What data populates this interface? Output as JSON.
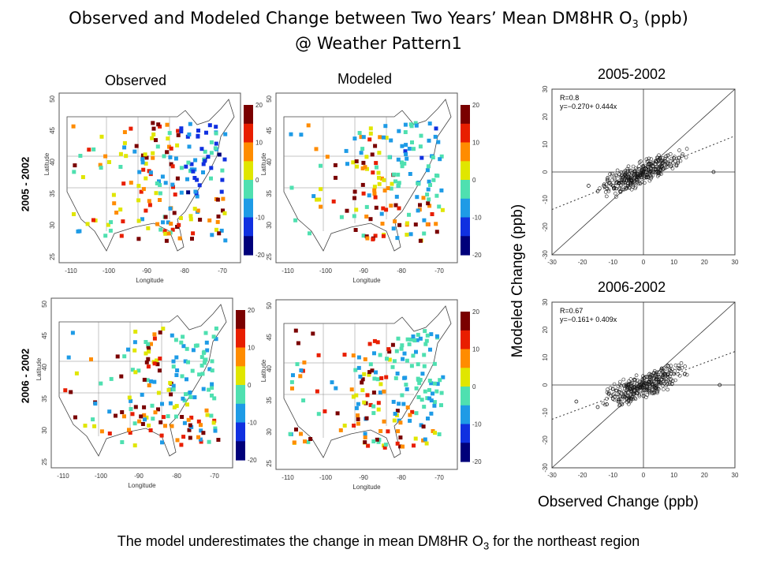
{
  "title": {
    "line1_main": "Observed and Modeled Change between Two Years’ Mean DM8HR O",
    "line1_sub": "3",
    "line1_end": " (ppb)",
    "line2": "@ Weather Pattern1"
  },
  "columns": {
    "observed": "Observed",
    "modeled": "Modeled"
  },
  "rows": {
    "row1": "2005 - 2002",
    "row2": "2006 - 2002"
  },
  "map_axes": {
    "xlabel": "Longitude",
    "ylabel": "Latitude",
    "xticks": [
      "-110",
      "-100",
      "-90",
      "-80",
      "-70"
    ],
    "yticks": [
      "25",
      "30",
      "35",
      "40",
      "45",
      "50"
    ]
  },
  "colorbar": {
    "ticks": [
      "20",
      "10",
      "0",
      "-10",
      "-20"
    ],
    "colors": [
      "#7a0000",
      "#e81e00",
      "#ff8c00",
      "#e0e600",
      "#4fe0b0",
      "#1e9be6",
      "#1030e0",
      "#00007a"
    ]
  },
  "scatter_axis_title_y": "Modeled Change (ppb)",
  "scatter_axis_title_x": "Observed Change (ppb)",
  "chart_data": [
    {
      "type": "scatter",
      "title": "2005-2002",
      "annotation_r": "R=0.8",
      "annotation_fit": "y=−0.270+ 0.444x",
      "fit": {
        "intercept": -0.27,
        "slope": 0.444
      },
      "xlim": [
        -30,
        30
      ],
      "ylim": [
        -30,
        30
      ],
      "xticks": [
        "-30",
        "-20",
        "-10",
        "0",
        "10",
        "20",
        "30"
      ],
      "yticks": [
        "-30",
        "-20",
        "-10",
        "0",
        "10",
        "20",
        "30"
      ],
      "x": [
        -18,
        -15,
        -12,
        -10,
        -8,
        -7,
        -6,
        -5,
        -4,
        -3,
        -2,
        -1,
        0,
        1,
        2,
        3,
        4,
        5,
        6,
        7,
        8,
        10,
        -9,
        -11,
        -13,
        -5,
        -3,
        0,
        2,
        5,
        8,
        -6,
        -2,
        1,
        4,
        9,
        23
      ],
      "y": [
        -5,
        -7,
        -6,
        -5,
        -4,
        -3,
        -4,
        -2,
        -3,
        -1,
        -2,
        -1,
        0,
        1,
        0,
        2,
        1,
        3,
        2,
        4,
        3,
        5,
        -6,
        -4,
        -5,
        -5,
        0,
        2,
        3,
        0,
        6,
        -1,
        -3,
        -2,
        4,
        2,
        0
      ]
    },
    {
      "type": "scatter",
      "title": "2006-2002",
      "annotation_r": "R=0.67",
      "annotation_fit": "y=−0.161+ 0.409x",
      "fit": {
        "intercept": -0.161,
        "slope": 0.409
      },
      "xlim": [
        -30,
        30
      ],
      "ylim": [
        -30,
        30
      ],
      "xticks": [
        "-30",
        "-20",
        "-10",
        "0",
        "10",
        "20",
        "30"
      ],
      "yticks": [
        "-30",
        "-20",
        "-10",
        "0",
        "10",
        "20",
        "30"
      ],
      "x": [
        -22,
        -15,
        -12,
        -10,
        -8,
        -6,
        -5,
        -4,
        -3,
        -2,
        -1,
        0,
        1,
        2,
        3,
        4,
        5,
        6,
        7,
        8,
        9,
        10,
        -9,
        -7,
        -3,
        0,
        2,
        4,
        6,
        -5,
        1,
        3,
        5,
        8,
        25
      ],
      "y": [
        -6,
        -8,
        -7,
        -5,
        -6,
        -3,
        -4,
        -5,
        -2,
        -3,
        -1,
        0,
        -2,
        1,
        0,
        2,
        3,
        2,
        4,
        3,
        5,
        4,
        -2,
        -7,
        2,
        -4,
        4,
        -1,
        6,
        0,
        3,
        -3,
        1,
        7,
        0
      ]
    }
  ],
  "footer": {
    "main": "The model underestimates the change in mean DM8HR O",
    "sub": "3",
    "end": " for the northeast region"
  }
}
